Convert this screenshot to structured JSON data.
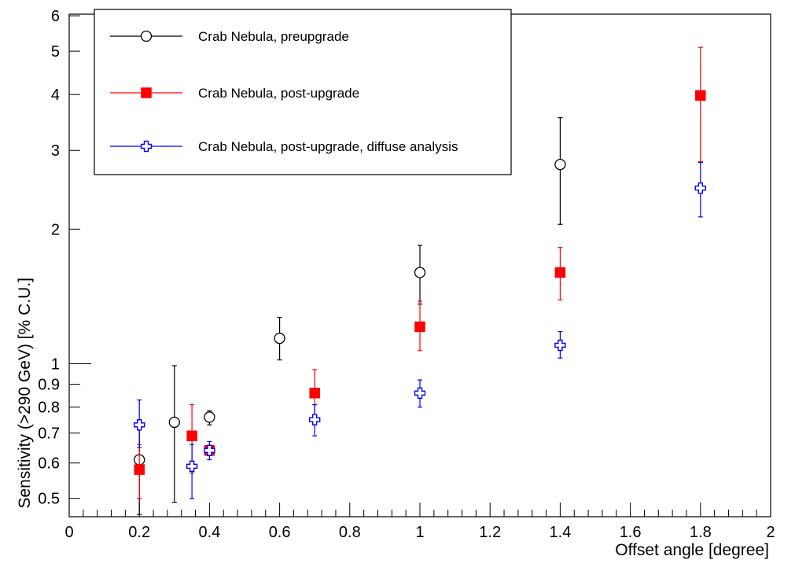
{
  "chart_data": {
    "type": "scatter",
    "xlabel": "Offset angle [degree]",
    "ylabel": "Sensitivity (>290 GeV) [% C.U.]",
    "xlim": [
      0,
      2
    ],
    "ylim": [
      0.45,
      6
    ],
    "y_scale": "log",
    "grid": false,
    "legend_position": "top-left",
    "x_ticks": [
      {
        "value": 0,
        "label": "0"
      },
      {
        "value": 0.2,
        "label": "0.2"
      },
      {
        "value": 0.4,
        "label": "0.4"
      },
      {
        "value": 0.6,
        "label": "0.6"
      },
      {
        "value": 0.8,
        "label": "0.8"
      },
      {
        "value": 1,
        "label": "1"
      },
      {
        "value": 1.2,
        "label": "1.2"
      },
      {
        "value": 1.4,
        "label": "1.4"
      },
      {
        "value": 1.6,
        "label": "1.6"
      },
      {
        "value": 1.8,
        "label": "1.8"
      },
      {
        "value": 2,
        "label": "2"
      }
    ],
    "y_ticks": [
      {
        "value": 0.5,
        "label": "0.5"
      },
      {
        "value": 0.6,
        "label": "0.6"
      },
      {
        "value": 0.7,
        "label": "0.7"
      },
      {
        "value": 0.8,
        "label": "0.8"
      },
      {
        "value": 0.9,
        "label": "0.9"
      },
      {
        "value": 1,
        "label": "1"
      },
      {
        "value": 2,
        "label": "2"
      },
      {
        "value": 3,
        "label": "3"
      },
      {
        "value": 4,
        "label": "4"
      },
      {
        "value": 5,
        "label": "5"
      },
      {
        "value": 6,
        "label": "6"
      }
    ],
    "series": [
      {
        "name": "Crab Nebula, preupgrade",
        "color": "#000000",
        "marker": "open-circle",
        "points": [
          {
            "x": 0.2,
            "y": 0.61,
            "ylo": 0.46,
            "yhi": 0.75
          },
          {
            "x": 0.3,
            "y": 0.74,
            "ylo": 0.49,
            "yhi": 0.99
          },
          {
            "x": 0.4,
            "y": 0.76,
            "ylo": 0.73,
            "yhi": 0.785
          },
          {
            "x": 0.6,
            "y": 1.14,
            "ylo": 1.02,
            "yhi": 1.27
          },
          {
            "x": 1.0,
            "y": 1.6,
            "ylo": 1.36,
            "yhi": 1.84
          },
          {
            "x": 1.4,
            "y": 2.79,
            "ylo": 2.05,
            "yhi": 3.55
          }
        ]
      },
      {
        "name": "Crab Nebula, post-upgrade",
        "color": "#ff0000",
        "marker": "filled-square",
        "points": [
          {
            "x": 0.2,
            "y": 0.58,
            "ylo": 0.5,
            "yhi": 0.66
          },
          {
            "x": 0.35,
            "y": 0.69,
            "ylo": 0.57,
            "yhi": 0.81
          },
          {
            "x": 0.4,
            "y": 0.64,
            "ylo": 0.63,
            "yhi": 0.65
          },
          {
            "x": 0.7,
            "y": 0.86,
            "ylo": 0.75,
            "yhi": 0.97
          },
          {
            "x": 1.0,
            "y": 1.21,
            "ylo": 1.07,
            "yhi": 1.38
          },
          {
            "x": 1.4,
            "y": 1.6,
            "ylo": 1.39,
            "yhi": 1.82
          },
          {
            "x": 1.8,
            "y": 3.98,
            "ylo": 2.83,
            "yhi": 5.1
          }
        ]
      },
      {
        "name": "Crab Nebula, post-upgrade, diffuse analysis",
        "color": "#0000ff",
        "marker": "open-cross",
        "points": [
          {
            "x": 0.2,
            "y": 0.73,
            "ylo": 0.65,
            "yhi": 0.83
          },
          {
            "x": 0.35,
            "y": 0.59,
            "ylo": 0.5,
            "yhi": 0.66
          },
          {
            "x": 0.4,
            "y": 0.64,
            "ylo": 0.61,
            "yhi": 0.67
          },
          {
            "x": 0.7,
            "y": 0.75,
            "ylo": 0.69,
            "yhi": 0.81
          },
          {
            "x": 1.0,
            "y": 0.86,
            "ylo": 0.8,
            "yhi": 0.92
          },
          {
            "x": 1.4,
            "y": 1.1,
            "ylo": 1.03,
            "yhi": 1.18
          },
          {
            "x": 1.8,
            "y": 2.47,
            "ylo": 2.13,
            "yhi": 2.82
          }
        ]
      }
    ]
  }
}
